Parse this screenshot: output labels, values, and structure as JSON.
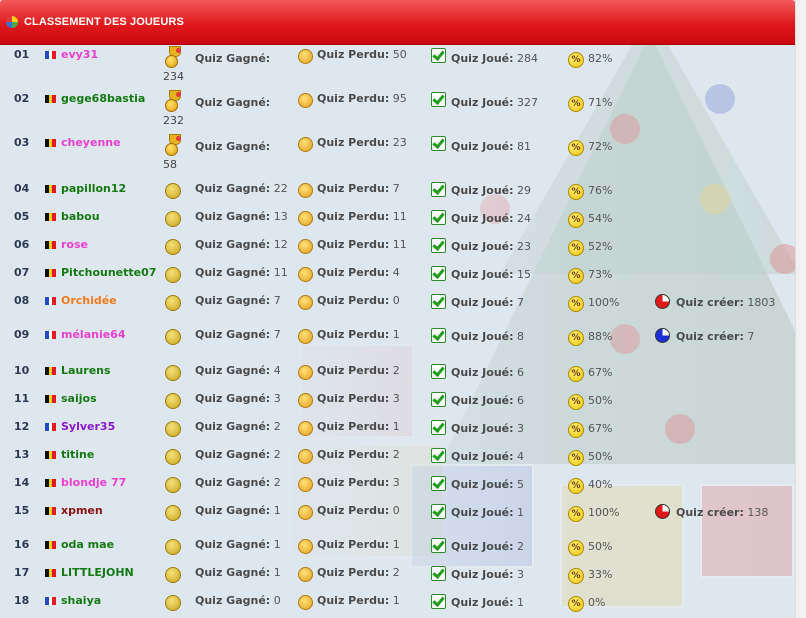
{
  "header": {
    "title": "CLASSEMENT DES JOUEURS",
    "icon": "colorful-ball-icon"
  },
  "labels": {
    "won": "Quiz Gagné:",
    "lost": "Quiz Perdu:",
    "played": "Quiz Joué:",
    "created": "Quiz créer:"
  },
  "colors": {
    "pink": "#e83fd0",
    "green": "#137a13",
    "orange": "#f07a1a",
    "purple": "#8a1ad0",
    "darkred": "#8a1313",
    "header_red": "#e0191d"
  },
  "players": [
    {
      "rank": "01",
      "flag": "fr",
      "name": "evy31",
      "color": "#e83fd0",
      "trophy": true,
      "trophy_count": "234",
      "won": "",
      "lost": "50",
      "played": "284",
      "pct": "82%"
    },
    {
      "rank": "02",
      "flag": "be",
      "name": "gege68bastia",
      "color": "#137a13",
      "trophy": true,
      "trophy_count": "232",
      "won": "",
      "lost": "95",
      "played": "327",
      "pct": "71%"
    },
    {
      "rank": "03",
      "flag": "be",
      "name": "cheyenne",
      "color": "#e83fd0",
      "trophy": true,
      "trophy_count": "58",
      "won": "",
      "lost": "23",
      "played": "81",
      "pct": "72%"
    },
    {
      "rank": "04",
      "flag": "be",
      "name": "papillon12",
      "color": "#137a13",
      "won": "22",
      "lost": "7",
      "played": "29",
      "pct": "76%"
    },
    {
      "rank": "05",
      "flag": "be",
      "name": "babou",
      "color": "#137a13",
      "won": "13",
      "lost": "11",
      "played": "24",
      "pct": "54%"
    },
    {
      "rank": "06",
      "flag": "be",
      "name": "rose",
      "color": "#e83fd0",
      "won": "12",
      "lost": "11",
      "played": "23",
      "pct": "52%"
    },
    {
      "rank": "07",
      "flag": "be",
      "name": "Pitchounette07",
      "color": "#137a13",
      "won": "11",
      "lost": "4",
      "played": "15",
      "pct": "73%"
    },
    {
      "rank": "08",
      "flag": "fr",
      "name": "Orchidée",
      "color": "#f07a1a",
      "won": "7",
      "lost": "0",
      "played": "7",
      "pct": "100%",
      "created": "1803",
      "pie": "red"
    },
    {
      "rank": "09",
      "flag": "fr",
      "name": "mélanie64",
      "color": "#e83fd0",
      "won": "7",
      "lost": "1",
      "played": "8",
      "pct": "88%",
      "created": "7",
      "pie": "blue"
    },
    {
      "rank": "10",
      "flag": "be",
      "name": "Laurens",
      "color": "#137a13",
      "won": "4",
      "lost": "2",
      "played": "6",
      "pct": "67%"
    },
    {
      "rank": "11",
      "flag": "be",
      "name": "saijos",
      "color": "#137a13",
      "won": "3",
      "lost": "3",
      "played": "6",
      "pct": "50%"
    },
    {
      "rank": "12",
      "flag": "fr",
      "name": "Sylver35",
      "color": "#8a1ad0",
      "won": "2",
      "lost": "1",
      "played": "3",
      "pct": "67%"
    },
    {
      "rank": "13",
      "flag": "be",
      "name": "titine",
      "color": "#137a13",
      "won": "2",
      "lost": "2",
      "played": "4",
      "pct": "50%"
    },
    {
      "rank": "14",
      "flag": "be",
      "name": "blondje 77",
      "color": "#e83fd0",
      "won": "2",
      "lost": "3",
      "played": "5",
      "pct": "40%"
    },
    {
      "rank": "15",
      "flag": "be",
      "name": "xpmen",
      "color": "#8a1313",
      "won": "1",
      "lost": "0",
      "played": "1",
      "pct": "100%",
      "created": "138",
      "pie": "red"
    },
    {
      "rank": "16",
      "flag": "be",
      "name": "oda mae",
      "color": "#137a13",
      "won": "1",
      "lost": "1",
      "played": "2",
      "pct": "50%"
    },
    {
      "rank": "17",
      "flag": "be",
      "name": "LITTLEJOHN",
      "color": "#137a13",
      "won": "1",
      "lost": "2",
      "played": "3",
      "pct": "33%"
    },
    {
      "rank": "18",
      "flag": "fr",
      "name": "shaiya",
      "color": "#137a13",
      "won": "0",
      "lost": "1",
      "played": "1",
      "pct": "0%"
    }
  ]
}
